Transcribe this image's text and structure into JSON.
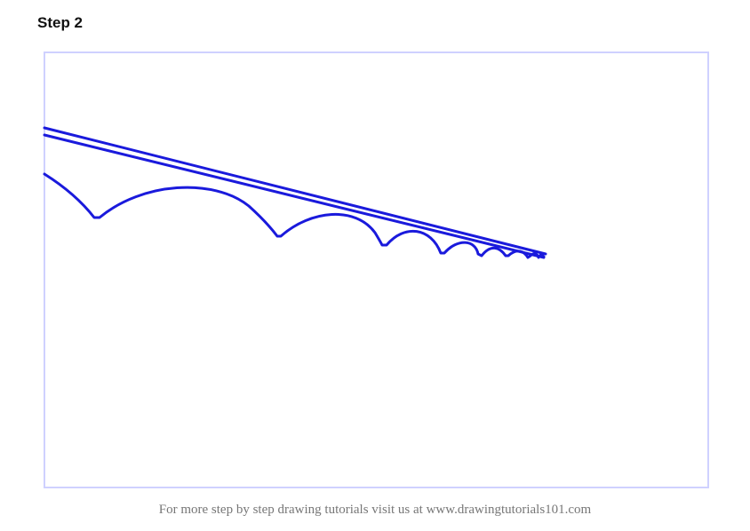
{
  "header": {
    "title": "Step 2"
  },
  "footer": {
    "text": "For more step by step drawing tutorials visit us at www.drawingtutorials101.com"
  },
  "colors": {
    "stroke": "#1a1adc",
    "frame_border": "#cfd1ff",
    "footer_text": "#777777"
  }
}
